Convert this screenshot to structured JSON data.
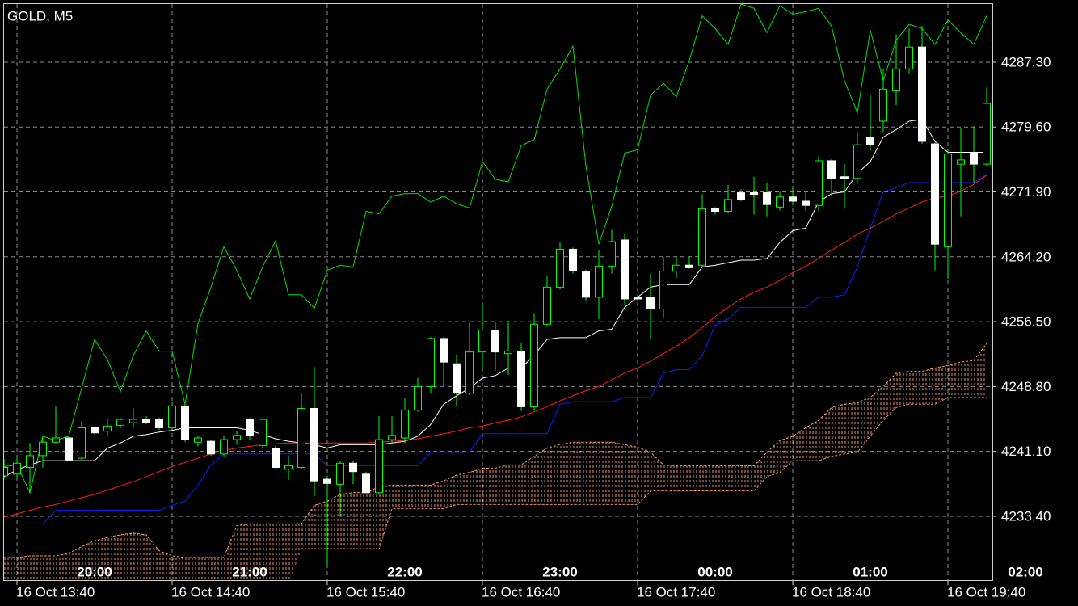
{
  "chart_data": {
    "type": "candlestick",
    "title": "GOLD, M5",
    "categories": [
      null,
      "16 Oct 13:40",
      null,
      null,
      null,
      null,
      null,
      null,
      null,
      null,
      null,
      null,
      null,
      "16 Oct 14:40",
      null,
      null,
      null,
      null,
      null,
      null,
      null,
      null,
      null,
      null,
      null,
      "16 Oct 15:40",
      null,
      null,
      null,
      null,
      null,
      null,
      null,
      null,
      null,
      null,
      null,
      "16 Oct 16:40",
      null,
      null,
      null,
      null,
      null,
      null,
      null,
      null,
      null,
      null,
      null,
      "16 Oct 17:40",
      null,
      null,
      null,
      null,
      null,
      null,
      null,
      null,
      null,
      null,
      null,
      "16 Oct 18:40",
      null,
      null,
      null,
      null,
      null,
      null,
      null,
      null,
      null,
      null,
      null,
      "16 Oct 19:40",
      null,
      null,
      null
    ],
    "top_labels": [
      "20:00",
      "21:00",
      "22:00",
      "23:00",
      "00:00",
      "01:00",
      "02:00"
    ],
    "open": [
      4238.2,
      4238.4,
      4239.2,
      4240.6,
      4242.2,
      4242.7,
      4240.3,
      4243.9,
      4243.5,
      4244.2,
      4244.5,
      4244.9,
      4244.9,
      4243.9,
      4246.5,
      4242.2,
      4242.3,
      4240.8,
      4242.5,
      4244.9,
      4241.8,
      4241.5,
      4239.0,
      4239.2,
      4246.2,
      4237.8,
      4237.2,
      4239.7,
      4238.4,
      4236.2,
      4242.5,
      4242.7,
      4246.0,
      4248.8,
      4254.5,
      4251.5,
      4248.0,
      4252.9,
      4255.5,
      4252.7,
      4253.0,
      4246.4,
      4256.2,
      4260.6,
      4265.1,
      4262.5,
      4259.4,
      4263.1,
      4266.2,
      4259.4,
      4259.4,
      4258.0,
      4262.5,
      4263.2,
      4263.2,
      4269.9,
      4269.6,
      4271.8,
      4271.8,
      4271.8,
      4270.1,
      4271.3,
      4270.8,
      4270.3,
      4275.6,
      4273.7,
      4273.5,
      4278.4,
      4280.3,
      4283.9,
      4286.5,
      4289.1,
      4277.6,
      4265.4,
      4275.2,
      4276.6,
      4275.2
    ],
    "high": [
      4240.2,
      4240.3,
      4242.1,
      4243.0,
      4246.4,
      4243.0,
      4244.7,
      4244.1,
      4244.9,
      4245.1,
      4246.2,
      4245.3,
      4245.1,
      4247.0,
      4247.0,
      4243.0,
      4242.5,
      4243.0,
      4243.5,
      4245.1,
      4245.1,
      4241.8,
      4240.6,
      4248.0,
      4251.1,
      4238.2,
      4240.0,
      4240.0,
      4238.7,
      4245.3,
      4245.3,
      4247.4,
      4249.8,
      4254.7,
      4254.7,
      4252.6,
      4256.4,
      4258.6,
      4256.4,
      4256.4,
      4254.0,
      4257.5,
      4261.9,
      4266.0,
      4265.3,
      4262.7,
      4265.0,
      4267.4,
      4266.9,
      4259.4,
      4262.2,
      4264.2,
      4264.2,
      4264.2,
      4271.6,
      4270.1,
      4272.7,
      4272.2,
      4273.7,
      4273.0,
      4271.9,
      4272.5,
      4271.9,
      4276.1,
      4275.8,
      4275.2,
      4279.0,
      4283.4,
      4286.5,
      4290.6,
      4291.3,
      4291.6,
      4277.9,
      4276.9,
      4279.5,
      4279.7,
      4284.3
    ],
    "low": [
      4237.8,
      4238.0,
      4236.1,
      4239.2,
      4242.0,
      4239.9,
      4240.1,
      4243.1,
      4242.9,
      4243.9,
      4243.9,
      4244.3,
      4243.7,
      4243.7,
      4242.2,
      4241.7,
      4240.6,
      4240.4,
      4241.9,
      4242.5,
      4241.5,
      4239.0,
      4237.7,
      4239.0,
      4235.8,
      4227.6,
      4233.4,
      4237.2,
      4236.1,
      4236.1,
      4242.2,
      4242.1,
      4245.8,
      4248.0,
      4248.8,
      4246.4,
      4247.8,
      4250.7,
      4250.7,
      4250.2,
      4245.9,
      4245.9,
      4255.9,
      4260.3,
      4262.2,
      4259.0,
      4256.8,
      4262.2,
      4258.4,
      4259.0,
      4254.5,
      4257.0,
      4261.7,
      4262.8,
      4262.9,
      4269.2,
      4269.4,
      4270.8,
      4269.2,
      4269.0,
      4269.7,
      4270.3,
      4269.7,
      4269.7,
      4271.4,
      4269.9,
      4272.9,
      4276.8,
      4279.0,
      4282.2,
      4286.0,
      4277.6,
      4262.6,
      4261.6,
      4269.0,
      4273.0,
      4275.0
    ],
    "close": [
      4239.2,
      4239.7,
      4240.6,
      4242.2,
      4242.7,
      4240.1,
      4243.9,
      4243.3,
      4244.1,
      4244.9,
      4244.9,
      4244.5,
      4243.9,
      4246.5,
      4242.5,
      4242.7,
      4240.8,
      4242.5,
      4243.0,
      4243.0,
      4244.9,
      4239.2,
      4239.4,
      4246.2,
      4237.6,
      4237.3,
      4239.7,
      4238.7,
      4236.2,
      4242.5,
      4243.0,
      4246.0,
      4248.8,
      4254.5,
      4251.7,
      4248.0,
      4252.9,
      4255.5,
      4252.9,
      4253.0,
      4246.4,
      4256.2,
      4260.6,
      4265.1,
      4262.5,
      4259.4,
      4263.1,
      4266.0,
      4259.2,
      4259.2,
      4258.0,
      4262.5,
      4263.2,
      4262.9,
      4269.9,
      4269.6,
      4271.0,
      4271.0,
      4271.6,
      4270.4,
      4271.3,
      4270.8,
      4270.3,
      4275.6,
      4273.5,
      4273.5,
      4277.5,
      4277.5,
      4284.1,
      4286.5,
      4289.1,
      4277.9,
      4265.7,
      4276.4,
      4275.7,
      4275.2,
      4282.4
    ],
    "up_color": "#00ff00",
    "down_color": "#ffffff",
    "lines": [
      {
        "color": "#00e000",
        "values": [
          4239.3,
          4239.5,
          4236.2,
          4242.9,
          4242.4,
          4242.9,
          4248.6,
          4254.4,
          4252.0,
          4248.2,
          4252.5,
          4255.4,
          4253.0,
          4253.0,
          4246.7,
          4256.3,
          4260.6,
          4265.4,
          4262.6,
          4259.2,
          4263.0,
          4266.1,
          4259.7,
          4259.7,
          4258.1,
          4262.6,
          4263.2,
          4263.0,
          4269.6,
          4269.3,
          4271.4,
          4271.7,
          4271.7,
          4270.7,
          4271.4,
          4270.5,
          4270.0,
          4275.5,
          4273.4,
          4273.1,
          4277.4,
          4278.1,
          4284.1,
          4286.5,
          4289.2,
          4275.0,
          4265.7,
          4270.2,
          4276.5,
          4276.9,
          4283.4,
          4284.8,
          4283.2,
          4287.5,
          4292.8,
          4291.3,
          4289.4,
          4294.2,
          4293.7,
          4290.8,
          4294.0,
          4293.0,
          4293.3,
          4293.7,
          4291.6,
          4285.1,
          4281.3,
          4291.1,
          4285.1,
          4289.9,
          4291.8,
          4291.3,
          4289.4,
          4292.3,
          4290.8,
          4289.4,
          4292.8
        ]
      },
      {
        "color": "#ffffff",
        "values": [
          4238.1,
          4238.9,
          4239.5,
          4240.0,
          4240.0,
          4240.0,
          4240.0,
          4240.0,
          4241.5,
          4242.1,
          4242.9,
          4243.1,
          4243.4,
          4243.6,
          4243.9,
          4243.9,
          4243.9,
          4243.9,
          4243.9,
          4243.6,
          4243.1,
          4242.6,
          4242.3,
          4242.1,
          4241.9,
          4241.5,
          4241.9,
          4241.9,
          4241.9,
          4241.9,
          4242.1,
          4242.3,
          4242.9,
          4244.3,
          4246.7,
          4247.7,
          4248.6,
          4249.8,
          4250.1,
          4251.0,
          4251.0,
          4252.5,
          4254.4,
          4254.6,
          4254.6,
          4254.6,
          4255.4,
          4255.6,
          4258.2,
          4259.4,
          4260.6,
          4260.9,
          4260.9,
          4260.9,
          4263.0,
          4263.2,
          4263.5,
          4263.8,
          4263.8,
          4264.0,
          4265.9,
          4267.3,
          4267.6,
          4270.7,
          4271.7,
          4271.9,
          4274.1,
          4275.5,
          4278.4,
          4279.3,
          4280.3,
          4280.5,
          4277.9,
          4276.6,
          4276.6,
          4276.6,
          4276.6
        ]
      },
      {
        "color": "#1a1aff",
        "values": [
          4232.5,
          4232.5,
          4232.5,
          4232.5,
          4234.1,
          4234.1,
          4234.1,
          4234.1,
          4234.1,
          4234.1,
          4234.1,
          4234.1,
          4234.1,
          4234.7,
          4235.2,
          4237.1,
          4239.5,
          4240.8,
          4240.8,
          4240.8,
          4240.8,
          4240.8,
          4240.8,
          4240.8,
          4240.8,
          4239.4,
          4239.4,
          4239.4,
          4239.4,
          4239.4,
          4239.4,
          4239.4,
          4239.4,
          4241.0,
          4241.0,
          4241.0,
          4241.0,
          4243.2,
          4243.2,
          4243.2,
          4243.2,
          4243.2,
          4243.2,
          4246.7,
          4247.0,
          4247.0,
          4247.0,
          4247.0,
          4247.5,
          4247.5,
          4247.5,
          4250.4,
          4250.8,
          4250.8,
          4252.5,
          4256.1,
          4256.8,
          4258.2,
          4258.2,
          4258.2,
          4258.2,
          4258.2,
          4258.2,
          4259.4,
          4259.4,
          4259.7,
          4263.0,
          4267.6,
          4271.9,
          4272.4,
          4273.0,
          4273.0,
          4273.0,
          4273.0,
          4273.0,
          4273.0,
          4274.0
        ]
      },
      {
        "color": "#ff1a1a",
        "values": [
          4233.3,
          4233.7,
          4234.1,
          4234.5,
          4234.8,
          4235.2,
          4235.6,
          4236.0,
          4236.5,
          4237.0,
          4237.5,
          4238.1,
          4238.7,
          4239.3,
          4239.8,
          4240.3,
          4240.8,
          4241.2,
          4241.5,
          4241.7,
          4241.9,
          4242.0,
          4242.1,
          4242.1,
          4242.1,
          4242.1,
          4242.1,
          4242.1,
          4242.1,
          4242.2,
          4242.3,
          4242.4,
          4242.6,
          4242.9,
          4243.2,
          4243.5,
          4243.9,
          4244.1,
          4244.5,
          4244.8,
          4245.2,
          4245.8,
          4246.4,
          4247.1,
          4247.7,
          4248.3,
          4248.8,
          4249.6,
          4250.4,
          4251.0,
          4251.8,
          4252.7,
          4253.6,
          4254.6,
          4255.8,
          4257.1,
          4258.2,
          4259.2,
          4260.0,
          4260.6,
          4261.4,
          4262.3,
          4263.1,
          4264.0,
          4265.0,
          4265.9,
          4266.9,
          4267.6,
          4268.4,
          4269.3,
          4270.0,
          4270.7,
          4271.2,
          4271.4,
          4272.0,
          4272.8,
          4273.9
        ]
      }
    ],
    "cloud": {
      "upper_color": "#f4a460",
      "lower_color": "#e8956a",
      "upper": [
        4228.5,
        4228.5,
        4228.7,
        4228.7,
        4228.7,
        4229.0,
        4229.8,
        4230.5,
        4230.9,
        4231.2,
        4231.4,
        4231.2,
        4229.3,
        4228.7,
        4228.5,
        4228.5,
        4228.5,
        4228.5,
        4232.3,
        4232.5,
        4232.5,
        4232.5,
        4232.5,
        4232.5,
        4234.7,
        4235.2,
        4236.0,
        4236.2,
        4236.2,
        4236.9,
        4237.1,
        4237.1,
        4237.1,
        4237.1,
        4237.6,
        4238.3,
        4238.6,
        4239.1,
        4239.1,
        4239.5,
        4239.5,
        4240.5,
        4241.5,
        4241.9,
        4242.2,
        4242.2,
        4242.2,
        4242.2,
        4241.9,
        4241.6,
        4241.0,
        4239.5,
        4239.4,
        4239.4,
        4239.4,
        4239.4,
        4239.4,
        4239.4,
        4239.4,
        4241.0,
        4242.4,
        4242.9,
        4243.9,
        4244.8,
        4246.3,
        4246.7,
        4246.9,
        4247.5,
        4248.8,
        4250.4,
        4250.6,
        4250.6,
        4251.0,
        4251.3,
        4251.7,
        4251.9,
        4253.9
      ],
      "lower": [
        null,
        null,
        null,
        null,
        null,
        null,
        null,
        null,
        null,
        null,
        null,
        null,
        null,
        null,
        null,
        null,
        null,
        null,
        null,
        null,
        null,
        null,
        null,
        4229.5,
        4229.5,
        4229.5,
        4229.5,
        4229.5,
        4229.5,
        4229.5,
        4234.3,
        4234.3,
        4234.3,
        4234.3,
        4234.3,
        4234.8,
        4234.8,
        4234.8,
        4234.8,
        4234.8,
        4234.8,
        4234.8,
        4234.8,
        4234.8,
        4234.8,
        4234.8,
        4234.8,
        4234.8,
        4234.8,
        4234.8,
        4236.4,
        4236.4,
        4236.4,
        4236.4,
        4236.4,
        4236.4,
        4236.4,
        4236.4,
        4236.4,
        4238.1,
        4238.6,
        4240.0,
        4240.0,
        4240.0,
        4240.5,
        4240.8,
        4241.0,
        4242.9,
        4244.8,
        4246.3,
        4246.7,
        4246.7,
        4246.7,
        4247.5,
        4247.5,
        4247.5,
        4247.5
      ]
    },
    "ylim": [
      4225.82,
      4294.2
    ],
    "yticks": [
      {
        "value": 4287.3,
        "label": "4287.30"
      },
      {
        "value": 4279.6,
        "label": "4279.60"
      },
      {
        "value": 4271.9,
        "label": "4271.90"
      },
      {
        "value": 4264.2,
        "label": "4264.20"
      },
      {
        "value": 4256.5,
        "label": "4256.50"
      },
      {
        "value": 4248.8,
        "label": "4248.80"
      },
      {
        "value": 4241.1,
        "label": "4241.10"
      },
      {
        "value": 4233.4,
        "label": "4233.40"
      }
    ],
    "grid": true
  }
}
